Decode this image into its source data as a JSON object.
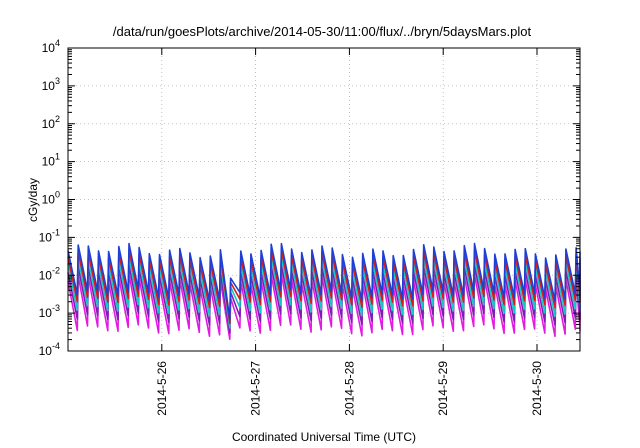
{
  "chart_data": {
    "type": "line",
    "title": "/data/run/goesPlots/archive/2014-05-30/11:00/flux/../bryn/5daysMars.plot",
    "xlabel": "Coordinated Universal Time (UTC)",
    "ylabel": "cGy/day",
    "yscale": "log",
    "ylim": [
      0.0001,
      10000
    ],
    "xlim": [
      "2014-05-25 00:00",
      "2014-05-30 11:00"
    ],
    "grid": true,
    "x_ticks": [
      "2014-5-26",
      "2014-5-27",
      "2014-5-28",
      "2014-5-29",
      "2014-5-30"
    ],
    "y_ticks": [
      {
        "base": "10",
        "exp": "-4"
      },
      {
        "base": "10",
        "exp": "-3"
      },
      {
        "base": "10",
        "exp": "-2"
      },
      {
        "base": "10",
        "exp": "-1"
      },
      {
        "base": "10",
        "exp": "0"
      },
      {
        "base": "10",
        "exp": "1"
      },
      {
        "base": "10",
        "exp": "2"
      },
      {
        "base": "10",
        "exp": "3"
      },
      {
        "base": "10",
        "exp": "4"
      }
    ],
    "sawtooth_period_hours": 2.6,
    "series": [
      {
        "color": "#1d3fd6",
        "peak": 0.045,
        "trough": 0.003
      },
      {
        "color": "#d81b1b",
        "peak": 0.03,
        "trough": 0.002
      },
      {
        "color": "#14c7c7",
        "peak": 0.02,
        "trough": 0.0012
      },
      {
        "color": "#7a1fb0",
        "peak": 0.012,
        "trough": 0.0007
      },
      {
        "color": "#e21be2",
        "peak": 0.007,
        "trough": 0.00035
      }
    ],
    "dip": {
      "start": "2014-05-26 15:00",
      "min_time": "2014-05-26 16:00",
      "end": "2014-05-26 18:30",
      "min_value": 0.0001
    }
  }
}
